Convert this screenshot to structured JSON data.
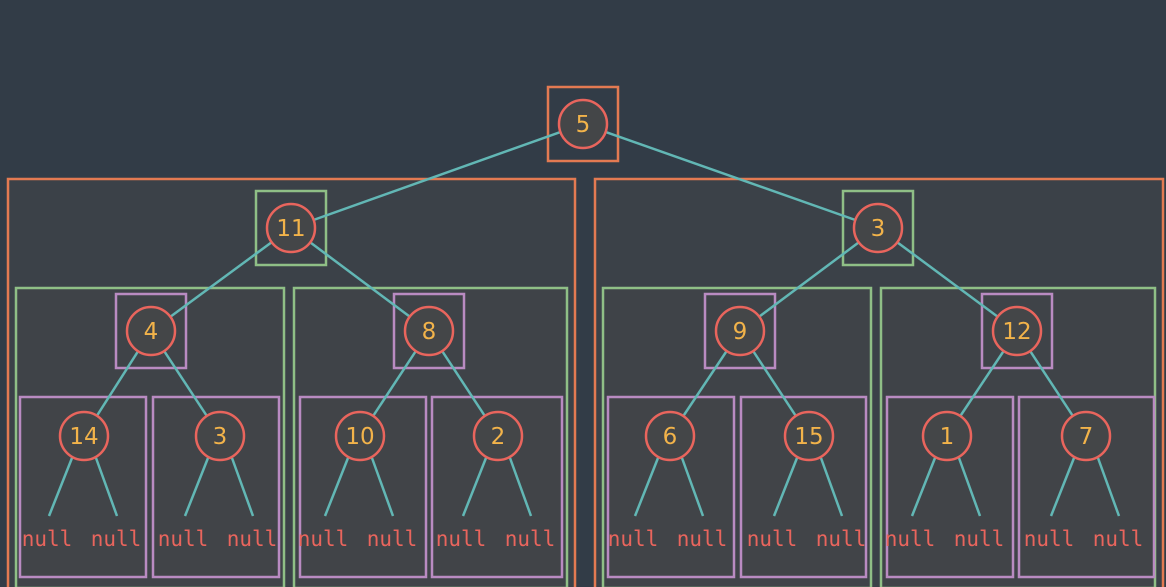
{
  "colors": {
    "background": "#323c47",
    "panel": "#444648",
    "box_orange": "#e37a52",
    "box_green": "#8fbf86",
    "box_purple": "#b98bc2",
    "node_circle": "#e9655d",
    "edge": "#62b7b5",
    "value_text": "#f2b34a",
    "null_text": "#e9655d"
  },
  "tree": {
    "root": {
      "value": "5"
    },
    "subtrees": [
      {
        "value": "11",
        "children": [
          {
            "value": "4",
            "leaves": [
              {
                "value": "14"
              },
              {
                "value": "3"
              }
            ]
          },
          {
            "value": "8",
            "leaves": [
              {
                "value": "10"
              },
              {
                "value": "2"
              }
            ]
          }
        ]
      },
      {
        "value": "3",
        "children": [
          {
            "value": "9",
            "leaves": [
              {
                "value": "6"
              },
              {
                "value": "15"
              }
            ]
          },
          {
            "value": "12",
            "leaves": [
              {
                "value": "1"
              },
              {
                "value": "7"
              }
            ]
          }
        ]
      }
    ],
    "null_label": "null"
  }
}
